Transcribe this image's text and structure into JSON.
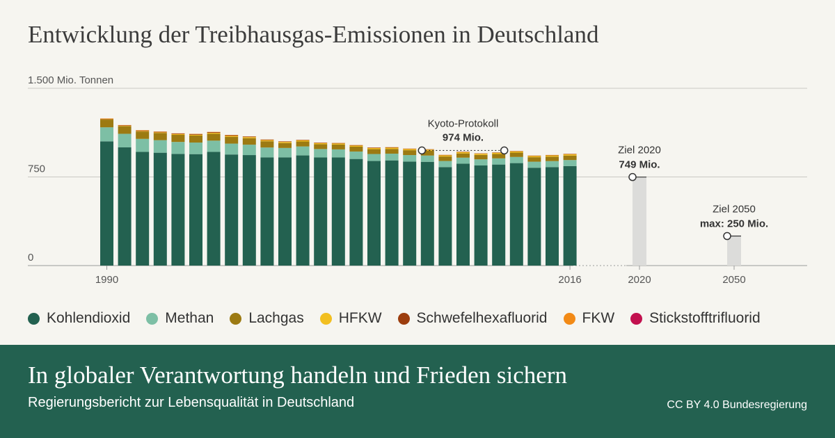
{
  "title": "Entwicklung der Treibhausgas-Emissionen in Deutschland",
  "chart_data": {
    "type": "bar",
    "stacked": true,
    "unit_label": "1.500 Mio. Tonnen",
    "y_ticks": [
      {
        "value": 0,
        "label": "0"
      },
      {
        "value": 750,
        "label": "750"
      },
      {
        "value": 1500,
        "label": ""
      }
    ],
    "ylim": [
      0,
      1500
    ],
    "x_tick_labels": [
      {
        "year": 1990,
        "label": "1990"
      },
      {
        "year": 2016,
        "label": "2016"
      },
      {
        "year": 2020,
        "label": "2020"
      },
      {
        "year": 2050,
        "label": "2050"
      }
    ],
    "years": [
      1990,
      1991,
      1992,
      1993,
      1994,
      1995,
      1996,
      1997,
      1998,
      1999,
      2000,
      2001,
      2002,
      2003,
      2004,
      2005,
      2006,
      2007,
      2008,
      2009,
      2010,
      2011,
      2012,
      2013,
      2014,
      2015,
      2016
    ],
    "series": [
      {
        "name": "Kohlendioxid",
        "color": "#236150",
        "values": [
          1051,
          1000,
          962,
          955,
          945,
          943,
          962,
          940,
          935,
          915,
          915,
          932,
          915,
          915,
          902,
          885,
          890,
          880,
          878,
          833,
          862,
          847,
          855,
          867,
          828,
          833,
          842
        ]
      },
      {
        "name": "Methan",
        "color": "#7dbfa5",
        "values": [
          119,
          115,
          110,
          106,
          101,
          98,
          95,
          92,
          88,
          84,
          80,
          76,
          71,
          68,
          63,
          59,
          57,
          55,
          53,
          52,
          51,
          52,
          52,
          52,
          51,
          51,
          51
        ]
      },
      {
        "name": "Lachgas",
        "color": "#9c7a12",
        "values": [
          65,
          64,
          62,
          61,
          60,
          59,
          58,
          57,
          55,
          53,
          42,
          42,
          41,
          41,
          41,
          41,
          40,
          41,
          40,
          38,
          36,
          37,
          37,
          37,
          38,
          38,
          38
        ]
      },
      {
        "name": "HFKW",
        "color": "#f2bf20",
        "values": [
          3,
          3,
          4,
          5,
          6,
          7,
          8,
          8,
          9,
          9,
          9,
          9,
          9,
          9,
          9,
          9,
          10,
          10,
          10,
          10,
          10,
          10,
          10,
          10,
          10,
          10,
          10
        ]
      },
      {
        "name": "Schwefelhexafluorid",
        "color": "#9c3d0e",
        "values": [
          4,
          4,
          5,
          5,
          5,
          6,
          6,
          6,
          5,
          5,
          4,
          4,
          4,
          4,
          4,
          4,
          4,
          3,
          3,
          3,
          3,
          3,
          3,
          3,
          3,
          3,
          3
        ]
      },
      {
        "name": "FKW",
        "color": "#f28a16",
        "values": [
          3,
          3,
          3,
          2,
          2,
          2,
          2,
          2,
          1,
          1,
          1,
          1,
          1,
          1,
          1,
          1,
          1,
          1,
          1,
          1,
          1,
          1,
          1,
          1,
          1,
          1,
          1
        ]
      },
      {
        "name": "Stickstofftrifluorid",
        "color": "#c2104e",
        "values": [
          0,
          0,
          0,
          0,
          0,
          0,
          0,
          0,
          0,
          0,
          0,
          0,
          0,
          0,
          0,
          0,
          0,
          0,
          0,
          0,
          0,
          0,
          0,
          0,
          0,
          0,
          0
        ]
      }
    ],
    "targets": [
      {
        "year": 2020,
        "value": 749,
        "label": "Ziel 2020",
        "value_label": "749 Mio."
      },
      {
        "year": 2050,
        "value": 250,
        "label": "Ziel 2050",
        "value_label": "max: 250 Mio."
      }
    ],
    "annotation": {
      "label": "Kyoto-Protokoll",
      "value_label": "974 Mio.",
      "value": 974,
      "from_year": 2008,
      "to_year": 2012
    },
    "legend_position": "bottom",
    "grid": true
  },
  "footer": {
    "title": "In globaler Verantwortung handeln und Frieden sichern",
    "subtitle": "Regierungsbericht zur Lebensqualität in Deutschland",
    "credit": "CC BY 4.0 Bundesregierung"
  }
}
